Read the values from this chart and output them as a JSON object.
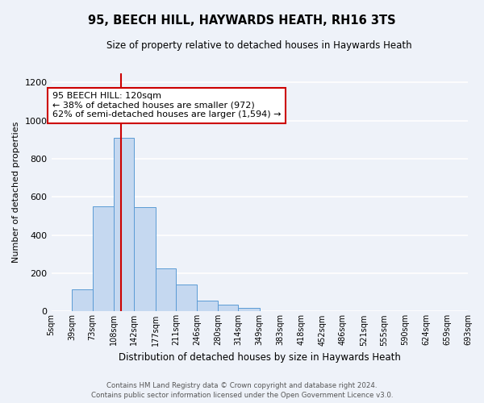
{
  "title": "95, BEECH HILL, HAYWARDS HEATH, RH16 3TS",
  "subtitle": "Size of property relative to detached houses in Haywards Heath",
  "xlabel": "Distribution of detached houses by size in Haywards Heath",
  "ylabel": "Number of detached properties",
  "bar_color": "#c5d8f0",
  "bar_edge_color": "#5b9bd5",
  "background_color": "#eef2f9",
  "grid_color": "#ffffff",
  "tick_labels": [
    "5sqm",
    "39sqm",
    "73sqm",
    "108sqm",
    "142sqm",
    "177sqm",
    "211sqm",
    "246sqm",
    "280sqm",
    "314sqm",
    "349sqm",
    "383sqm",
    "418sqm",
    "452sqm",
    "486sqm",
    "521sqm",
    "555sqm",
    "590sqm",
    "624sqm",
    "659sqm",
    "693sqm"
  ],
  "bin_edges": [
    5,
    39,
    73,
    108,
    142,
    177,
    211,
    246,
    280,
    314,
    349,
    383,
    418,
    452,
    486,
    521,
    555,
    590,
    624,
    659,
    693
  ],
  "bar_heights": [
    0,
    115,
    550,
    910,
    545,
    225,
    140,
    55,
    35,
    20,
    0,
    0,
    0,
    0,
    0,
    0,
    0,
    0,
    0,
    0
  ],
  "ylim": [
    0,
    1250
  ],
  "yticks": [
    0,
    200,
    400,
    600,
    800,
    1000,
    1200
  ],
  "property_size": 120,
  "property_label": "95 BEECH HILL: 120sqm",
  "annotation_line1": "← 38% of detached houses are smaller (972)",
  "annotation_line2": "62% of semi-detached houses are larger (1,594) →",
  "vline_color": "#cc0000",
  "annotation_box_edge": "#cc0000",
  "annotation_box_face": "#ffffff",
  "footer_line1": "Contains HM Land Registry data © Crown copyright and database right 2024.",
  "footer_line2": "Contains public sector information licensed under the Open Government Licence v3.0."
}
